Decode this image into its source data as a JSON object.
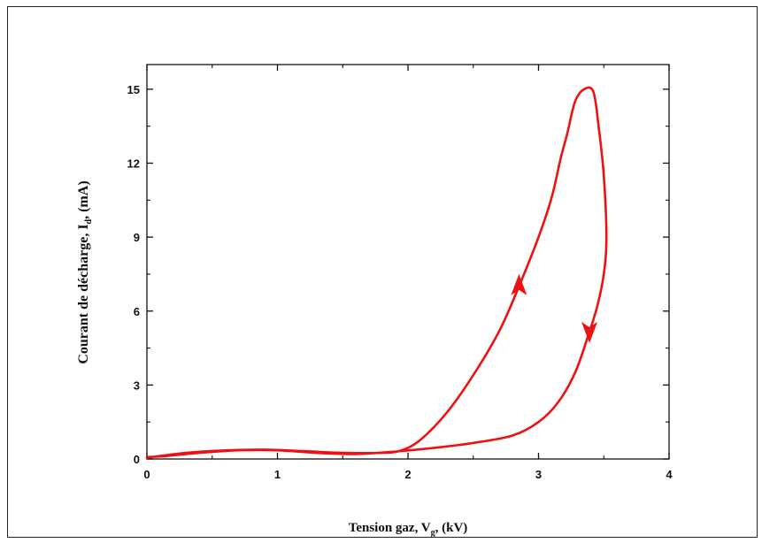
{
  "chart_data": {
    "type": "line",
    "title": "",
    "xlabel": {
      "main": "Tension gaz, V",
      "sub": "g",
      "suffix": ", (kV)"
    },
    "ylabel": {
      "main": "Courant de décharge, I",
      "sub": "d",
      "suffix": ", (mA)"
    },
    "xlim": [
      0,
      4
    ],
    "ylim": [
      0,
      16
    ],
    "x_ticks": [
      0,
      1,
      2,
      3,
      4
    ],
    "x_tick_labels": [
      "0",
      "1",
      "2",
      "3",
      "4"
    ],
    "y_ticks": [
      0,
      3,
      6,
      9,
      12,
      15
    ],
    "y_tick_labels": [
      "0",
      "3",
      "6",
      "9",
      "12",
      "15"
    ],
    "grid": false,
    "color": "#ee1111",
    "series": [
      {
        "points": [
          [
            0.0,
            0.05
          ],
          [
            0.3,
            0.25
          ],
          [
            0.6,
            0.35
          ],
          [
            0.9,
            0.38
          ],
          [
            1.2,
            0.32
          ],
          [
            1.5,
            0.25
          ],
          [
            1.8,
            0.25
          ],
          [
            1.95,
            0.35
          ],
          [
            2.1,
            0.8
          ],
          [
            2.3,
            1.9
          ],
          [
            2.5,
            3.4
          ],
          [
            2.7,
            5.2
          ],
          [
            2.85,
            7.0
          ],
          [
            3.0,
            9.0
          ],
          [
            3.1,
            10.6
          ],
          [
            3.17,
            12.2
          ],
          [
            3.22,
            13.2
          ],
          [
            3.28,
            14.5
          ],
          [
            3.35,
            15.0
          ],
          [
            3.42,
            14.9
          ],
          [
            3.46,
            13.5
          ],
          [
            3.5,
            11.5
          ],
          [
            3.52,
            9.0
          ],
          [
            3.5,
            7.5
          ],
          [
            3.45,
            6.2
          ],
          [
            3.38,
            5.0
          ],
          [
            3.28,
            3.5
          ],
          [
            3.15,
            2.3
          ],
          [
            3.0,
            1.5
          ],
          [
            2.8,
            0.95
          ],
          [
            2.5,
            0.65
          ],
          [
            2.2,
            0.45
          ],
          [
            1.9,
            0.3
          ],
          [
            1.6,
            0.2
          ],
          [
            1.3,
            0.25
          ],
          [
            1.0,
            0.35
          ],
          [
            0.7,
            0.35
          ],
          [
            0.4,
            0.25
          ],
          [
            0.15,
            0.12
          ],
          [
            0.0,
            0.08
          ]
        ]
      }
    ],
    "arrows": [
      {
        "at": [
          2.85,
          7.0
        ],
        "direction": "up"
      },
      {
        "at": [
          3.39,
          5.2
        ],
        "direction": "down"
      }
    ]
  }
}
